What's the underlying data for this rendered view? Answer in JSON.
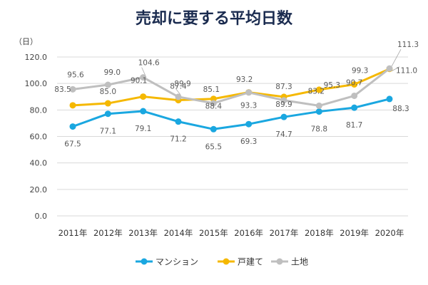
{
  "chart_data": {
    "type": "line",
    "title": "売却に要する平均日数",
    "ylabel": "（日）",
    "xlabel": "",
    "ylim": [
      0,
      120
    ],
    "yticks": [
      "0.0",
      "20.0",
      "40.0",
      "60.0",
      "80.0",
      "100.0",
      "120.0"
    ],
    "ytick_values": [
      0,
      20,
      40,
      60,
      80,
      100,
      120
    ],
    "categories": [
      "2011年",
      "2012年",
      "2013年",
      "2014年",
      "2015年",
      "2016年",
      "2017年",
      "2018年",
      "2019年",
      "2020年"
    ],
    "grid": true,
    "legend": "bottom",
    "series": [
      {
        "name": "マンション",
        "color": "#1aa7e0",
        "values": [
          67.5,
          77.1,
          79.1,
          71.2,
          65.5,
          69.3,
          74.7,
          78.8,
          81.7,
          88.3
        ],
        "labels": [
          "67.5",
          "77.1",
          "79.1",
          "71.2",
          "65.5",
          "69.3",
          "74.7",
          "78.8",
          "81.7",
          "88.3"
        ]
      },
      {
        "name": "戸建て",
        "color": "#f5b800",
        "values": [
          83.5,
          85.0,
          90.1,
          87.4,
          88.4,
          93.3,
          89.9,
          95.3,
          99.3,
          111.0
        ],
        "labels": [
          "83.5",
          "85.0",
          "90.1",
          "87.4",
          "88.4",
          "93.3",
          "89.9",
          "95.3",
          "99.3",
          "111.0"
        ]
      },
      {
        "name": "土地",
        "color": "#bfbfbf",
        "values": [
          95.6,
          99.0,
          104.6,
          89.9,
          85.1,
          93.2,
          87.3,
          83.2,
          90.7,
          111.3
        ],
        "labels": [
          "95.6",
          "99.0",
          "104.6",
          "89.9",
          "85.1",
          "93.2",
          "87.3",
          "83.2",
          "90.7",
          "111.3"
        ]
      }
    ]
  }
}
